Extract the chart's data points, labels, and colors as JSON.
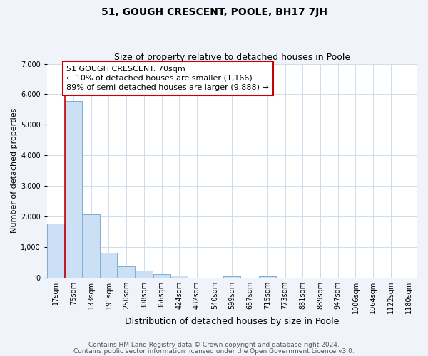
{
  "title": "51, GOUGH CRESCENT, POOLE, BH17 7JH",
  "subtitle": "Size of property relative to detached houses in Poole",
  "xlabel": "Distribution of detached houses by size in Poole",
  "ylabel": "Number of detached properties",
  "bar_labels": [
    "17sqm",
    "75sqm",
    "133sqm",
    "191sqm",
    "250sqm",
    "308sqm",
    "366sqm",
    "424sqm",
    "482sqm",
    "540sqm",
    "599sqm",
    "657sqm",
    "715sqm",
    "773sqm",
    "831sqm",
    "889sqm",
    "947sqm",
    "1006sqm",
    "1064sqm",
    "1122sqm",
    "1180sqm"
  ],
  "bar_values": [
    1780,
    5780,
    2080,
    810,
    370,
    235,
    110,
    65,
    5,
    5,
    35,
    5,
    50,
    0,
    0,
    0,
    0,
    0,
    0,
    0,
    0
  ],
  "bar_color": "#cce0f5",
  "bar_edge_color": "#7bafd4",
  "annotation_text": "51 GOUGH CRESCENT: 70sqm\n← 10% of detached houses are smaller (1,166)\n89% of semi-detached houses are larger (9,888) →",
  "annotation_box_color": "#ffffff",
  "annotation_box_edge_color": "#cc0000",
  "vline_color": "#cc0000",
  "ylim": [
    0,
    7000
  ],
  "yticks": [
    0,
    1000,
    2000,
    3000,
    4000,
    5000,
    6000,
    7000
  ],
  "footer_line1": "Contains HM Land Registry data © Crown copyright and database right 2024.",
  "footer_line2": "Contains public sector information licensed under the Open Government Licence v3.0.",
  "plot_bg_color": "#ffffff",
  "fig_bg_color": "#f0f4fa",
  "grid_color": "#c8d8e8",
  "title_fontsize": 10,
  "subtitle_fontsize": 9,
  "xlabel_fontsize": 9,
  "ylabel_fontsize": 8,
  "tick_fontsize": 7,
  "annotation_fontsize": 8,
  "footer_fontsize": 6.5
}
